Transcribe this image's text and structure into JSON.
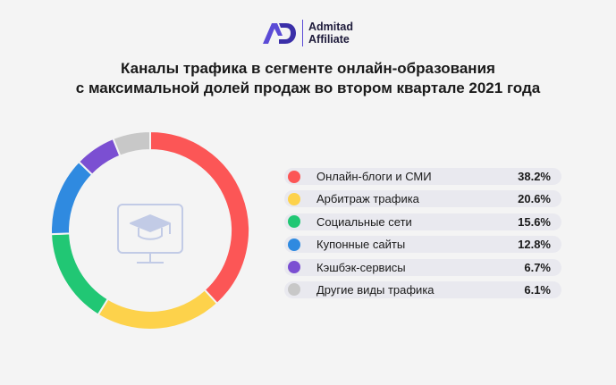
{
  "brand": {
    "line1": "Admitad",
    "line2": "Affiliate",
    "color": "#5b4bd6"
  },
  "chart_data": {
    "type": "pie",
    "title_lines": [
      "Каналы трафика в сегменте онлайн-образования",
      "с максимальной долей продаж во втором квартале 2021 года"
    ],
    "center_icon": "monitor-graduation-cap-icon",
    "slices": [
      {
        "label": "Онлайн-блоги и СМИ",
        "value": 38.2,
        "display": "38.2%",
        "color": "#fc5656"
      },
      {
        "label": "Арбитраж трафика",
        "value": 20.6,
        "display": "20.6%",
        "color": "#fdd24b"
      },
      {
        "label": "Социальные сети",
        "value": 15.6,
        "display": "15.6%",
        "color": "#21c774"
      },
      {
        "label": "Купонные сайты",
        "value": 12.8,
        "display": "12.8%",
        "color": "#2f8ae0"
      },
      {
        "label": "Кэшбэк-сервисы",
        "value": 6.7,
        "display": "6.7%",
        "color": "#7b4fd2"
      },
      {
        "label": "Другие виды трафика",
        "value": 6.1,
        "display": "6.1%",
        "color": "#c8c8c8"
      }
    ]
  }
}
